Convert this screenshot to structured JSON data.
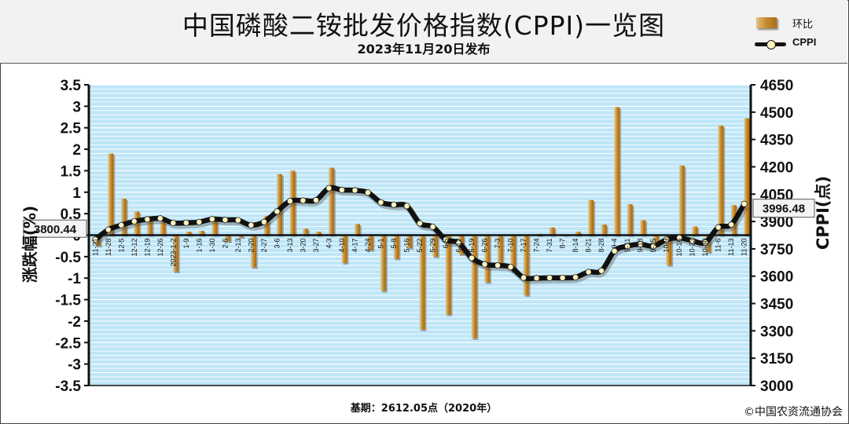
{
  "header": {
    "title": "中国磷酸二铵批发价格指数(CPPI)一览图",
    "subtitle": "2023年11月20日发布"
  },
  "legend": {
    "bar_label": "环比",
    "line_label": "CPPI"
  },
  "footer": {
    "base_text": "基期：2612.05点（2020年）",
    "copyright": "©中国农资流通协会"
  },
  "annotations": {
    "start_value": "3800.44",
    "end_value": "3996.48"
  },
  "colors": {
    "plot_bg": "#bfe6f7",
    "grid": "#ffffff",
    "bar_gold": "#c48a2c",
    "bar_light": "#e9c27a",
    "line": "#111111",
    "marker_fill": "#fff3c0"
  },
  "chart_data": {
    "type": "bar",
    "combo": "bar+line",
    "categories": [
      "11-21",
      "11-28",
      "12-5",
      "12-12",
      "12-19",
      "12-26",
      "2023-1-2",
      "1-9",
      "1-16",
      "1-30",
      "2-6",
      "2-13",
      "2-20",
      "2-27",
      "3-6",
      "3-13",
      "3-20",
      "3-27",
      "4-3",
      "4-10",
      "4-17",
      "4-24",
      "5-1",
      "5-8",
      "5-16",
      "5-22",
      "5-29",
      "6-5",
      "6-12",
      "6-19",
      "6-26",
      "7-3",
      "7-10",
      "7-17",
      "7-24",
      "7-31",
      "8-7",
      "8-14",
      "8-21",
      "8-28",
      "9-4",
      "9-11",
      "9-18",
      "9-25",
      "10-9",
      "10-16",
      "10-23",
      "10-30",
      "11-6",
      "11-13",
      "11-20"
    ],
    "series": [
      {
        "name": "环比",
        "type": "bar",
        "axis": "left",
        "values": [
          -0.25,
          1.9,
          0.85,
          0.55,
          0.4,
          0.3,
          -0.85,
          0.08,
          0.1,
          0.4,
          -0.15,
          -0.05,
          -0.75,
          0.45,
          1.42,
          1.5,
          0.15,
          0.08,
          1.57,
          -0.65,
          0.26,
          -0.35,
          -1.3,
          -0.55,
          -0.3,
          -2.2,
          -0.5,
          -1.85,
          -0.45,
          -2.4,
          -1.1,
          -0.7,
          -0.85,
          -1.4,
          0.03,
          0.18,
          0.02,
          0.08,
          0.82,
          0.25,
          2.98,
          0.72,
          0.35,
          -0.25,
          -0.7,
          1.62,
          0.2,
          -0.4,
          2.55,
          0.7,
          2.72
        ]
      },
      {
        "name": "CPPI",
        "type": "line",
        "axis": "right",
        "values": [
          3800.44,
          3855,
          3880,
          3901,
          3912,
          3917,
          3892,
          3893,
          3897,
          3913,
          3909,
          3907,
          3880,
          3898,
          3955,
          4012,
          4015,
          4017,
          4083,
          4073,
          4071,
          4059,
          4005,
          3992,
          3985,
          3890,
          3871,
          3800,
          3783,
          3700,
          3665,
          3659,
          3650,
          3592,
          3589,
          3591,
          3591,
          3594,
          3623,
          3630,
          3738,
          3765,
          3775,
          3765,
          3800,
          3810,
          3795,
          3785,
          3868,
          3883,
          3996.48
        ]
      }
    ],
    "ylabel": "涨跌幅(%)",
    "y2label": "CPPI(点)",
    "ylim": [
      -3.5,
      3.5
    ],
    "y2lim": [
      3000,
      4650
    ],
    "yticks": [
      3.5,
      3,
      2.5,
      2,
      1.5,
      1,
      0.5,
      0,
      -0.5,
      -1,
      -1.5,
      -2,
      -2.5,
      -3,
      -3.5
    ],
    "y2ticks": [
      4650,
      4500,
      4350,
      4200,
      4050,
      3900,
      3750,
      3600,
      3450,
      3300,
      3150,
      3000
    ],
    "grid": true,
    "legend_position": "top-right"
  }
}
